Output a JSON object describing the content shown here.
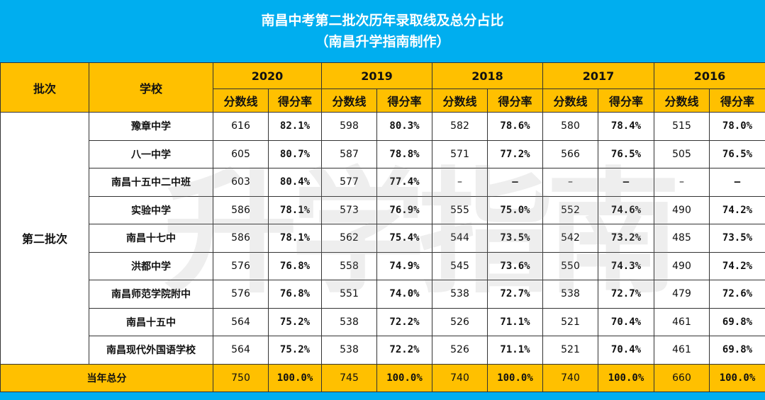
{
  "title": {
    "line1": "南昌中考第二批次历年录取线及总分占比",
    "line2": "（南昌升学指南制作）"
  },
  "watermark": "升学指南",
  "header": {
    "batch": "批次",
    "school": "学校",
    "years": [
      "2020",
      "2019",
      "2018",
      "2017",
      "2016"
    ],
    "score_label": "分数线",
    "rate_label": "得分率"
  },
  "batch_name": "第二批次",
  "rows": [
    {
      "school": "豫章中学",
      "values": [
        "616",
        "82.1%",
        "598",
        "80.3%",
        "582",
        "78.6%",
        "580",
        "78.4%",
        "515",
        "78.0%"
      ]
    },
    {
      "school": "八一中学",
      "values": [
        "605",
        "80.7%",
        "587",
        "78.8%",
        "571",
        "77.2%",
        "566",
        "76.5%",
        "505",
        "76.5%"
      ]
    },
    {
      "school": "南昌十五中二中班",
      "values": [
        "603",
        "80.4%",
        "577",
        "77.4%",
        "–",
        "–",
        "–",
        "–",
        "–",
        "–"
      ]
    },
    {
      "school": "实验中学",
      "values": [
        "586",
        "78.1%",
        "573",
        "76.9%",
        "555",
        "75.0%",
        "552",
        "74.6%",
        "490",
        "74.2%"
      ]
    },
    {
      "school": "南昌十七中",
      "values": [
        "586",
        "78.1%",
        "562",
        "75.4%",
        "544",
        "73.5%",
        "542",
        "73.2%",
        "485",
        "73.5%"
      ]
    },
    {
      "school": "洪都中学",
      "values": [
        "576",
        "76.8%",
        "558",
        "74.9%",
        "545",
        "73.6%",
        "550",
        "74.3%",
        "490",
        "74.2%"
      ]
    },
    {
      "school": "南昌师范学院附中",
      "values": [
        "576",
        "76.8%",
        "551",
        "74.0%",
        "538",
        "72.7%",
        "538",
        "72.7%",
        "479",
        "72.6%"
      ]
    },
    {
      "school": "南昌十五中",
      "values": [
        "564",
        "75.2%",
        "538",
        "72.2%",
        "526",
        "71.1%",
        "521",
        "70.4%",
        "461",
        "69.8%"
      ]
    },
    {
      "school": "南昌现代外国语学校",
      "values": [
        "564",
        "75.2%",
        "538",
        "72.2%",
        "526",
        "71.1%",
        "521",
        "70.4%",
        "461",
        "69.8%"
      ]
    }
  ],
  "total": {
    "label": "当年总分",
    "values": [
      "750",
      "100.0%",
      "745",
      "100.0%",
      "740",
      "100.0%",
      "740",
      "100.0%",
      "660",
      "100.0%"
    ]
  },
  "colors": {
    "banner": "#00aeef",
    "header": "#ffc000"
  }
}
